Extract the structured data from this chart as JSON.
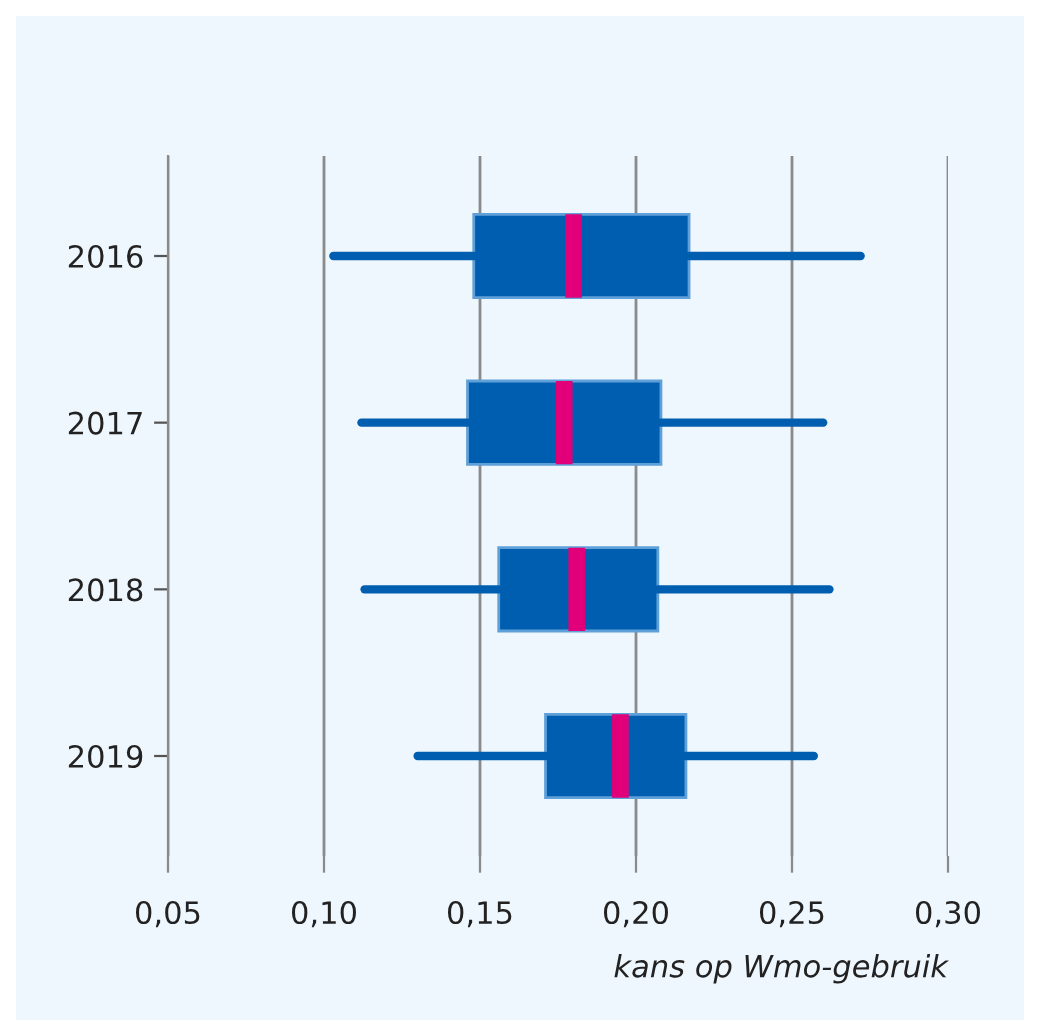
{
  "chart_data": {
    "type": "box",
    "orientation": "horizontal",
    "xlabel": "kans op Wmo-gebruik",
    "categories": [
      "2016",
      "2017",
      "2018",
      "2019"
    ],
    "boxes": [
      {
        "low": 0.103,
        "q1": 0.148,
        "median": 0.18,
        "q3": 0.217,
        "high": 0.272
      },
      {
        "low": 0.112,
        "q1": 0.146,
        "median": 0.177,
        "q3": 0.208,
        "high": 0.26
      },
      {
        "low": 0.113,
        "q1": 0.156,
        "median": 0.181,
        "q3": 0.207,
        "high": 0.262
      },
      {
        "low": 0.13,
        "q1": 0.171,
        "median": 0.195,
        "q3": 0.216,
        "high": 0.257
      }
    ],
    "color": "#005eb0",
    "xlim": [
      0.05,
      0.3
    ],
    "xticks": [
      {
        "value": 0.05,
        "label": "0,05"
      },
      {
        "value": 0.1,
        "label": "0,10"
      },
      {
        "value": 0.15,
        "label": "0,15"
      },
      {
        "value": 0.2,
        "label": "0,20"
      },
      {
        "value": 0.25,
        "label": "0,25"
      },
      {
        "value": 0.3,
        "label": "0,30"
      }
    ],
    "grid": "x"
  }
}
